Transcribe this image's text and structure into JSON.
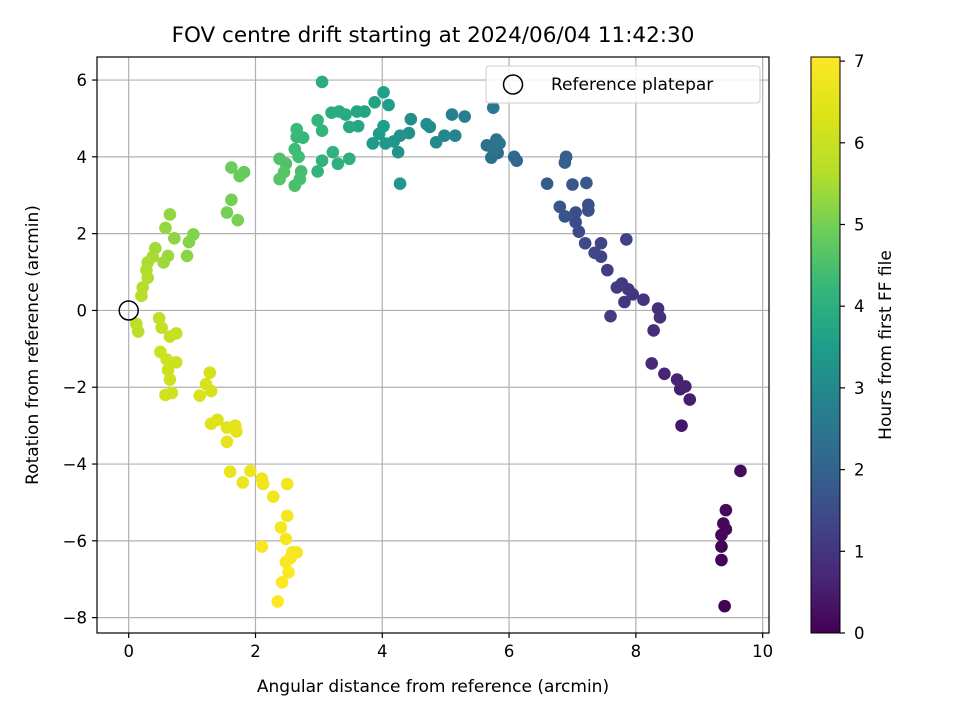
{
  "chart_data": {
    "type": "scatter",
    "title": "FOV centre drift starting at 2024/06/04 11:42:30",
    "xlabel": "Angular distance from reference (arcmin)",
    "ylabel": "Rotation from reference (arcmin)",
    "xlim": [
      -0.5,
      10.1
    ],
    "ylim": [
      -8.4,
      6.6
    ],
    "xticks": [
      0,
      2,
      4,
      6,
      8,
      10
    ],
    "yticks": [
      -8,
      -6,
      -4,
      -2,
      0,
      2,
      4,
      6
    ],
    "grid": true,
    "legend": {
      "position": "upper-right",
      "entries": [
        "Reference platepar"
      ]
    },
    "reference_point": {
      "x": 0,
      "y": 0,
      "label": "Reference platepar"
    },
    "colorbar": {
      "label": "Hours from first FF file",
      "range": [
        0,
        7.05
      ],
      "ticks": [
        0,
        1,
        2,
        3,
        4,
        5,
        6,
        7
      ],
      "colormap": "viridis"
    },
    "points": [
      {
        "x": 9.4,
        "y": -7.7,
        "h": 0.02
      },
      {
        "x": 9.35,
        "y": -6.5,
        "h": 0.05
      },
      {
        "x": 9.35,
        "y": -6.15,
        "h": 0.08
      },
      {
        "x": 9.35,
        "y": -5.85,
        "h": 0.1
      },
      {
        "x": 9.42,
        "y": -5.7,
        "h": 0.12
      },
      {
        "x": 9.38,
        "y": -5.55,
        "h": 0.14
      },
      {
        "x": 9.42,
        "y": -5.2,
        "h": 0.16
      },
      {
        "x": 9.65,
        "y": -4.18,
        "h": 0.2
      },
      {
        "x": 8.72,
        "y": -3.0,
        "h": 0.4
      },
      {
        "x": 8.85,
        "y": -2.32,
        "h": 0.5
      },
      {
        "x": 8.7,
        "y": -2.05,
        "h": 0.55
      },
      {
        "x": 8.78,
        "y": -1.98,
        "h": 0.58
      },
      {
        "x": 8.65,
        "y": -1.8,
        "h": 0.62
      },
      {
        "x": 8.45,
        "y": -1.65,
        "h": 0.66
      },
      {
        "x": 8.25,
        "y": -1.38,
        "h": 0.72
      },
      {
        "x": 8.28,
        "y": -0.52,
        "h": 0.8
      },
      {
        "x": 8.38,
        "y": -0.18,
        "h": 0.85
      },
      {
        "x": 8.35,
        "y": 0.05,
        "h": 0.88
      },
      {
        "x": 8.12,
        "y": 0.28,
        "h": 0.94
      },
      {
        "x": 7.95,
        "y": 0.42,
        "h": 0.98
      },
      {
        "x": 7.82,
        "y": 0.22,
        "h": 1.02
      },
      {
        "x": 7.88,
        "y": 0.55,
        "h": 1.05
      },
      {
        "x": 7.78,
        "y": 0.7,
        "h": 1.08
      },
      {
        "x": 7.7,
        "y": 0.6,
        "h": 1.1
      },
      {
        "x": 7.6,
        "y": -0.15,
        "h": 1.15
      },
      {
        "x": 7.55,
        "y": 1.05,
        "h": 1.2
      },
      {
        "x": 7.85,
        "y": 1.85,
        "h": 1.25
      },
      {
        "x": 7.45,
        "y": 1.4,
        "h": 1.3
      },
      {
        "x": 7.45,
        "y": 1.75,
        "h": 1.33
      },
      {
        "x": 7.35,
        "y": 1.5,
        "h": 1.36
      },
      {
        "x": 7.2,
        "y": 1.75,
        "h": 1.4
      },
      {
        "x": 7.1,
        "y": 2.05,
        "h": 1.44
      },
      {
        "x": 7.05,
        "y": 2.3,
        "h": 1.48
      },
      {
        "x": 7.05,
        "y": 2.55,
        "h": 1.52
      },
      {
        "x": 7.25,
        "y": 2.6,
        "h": 1.56
      },
      {
        "x": 7.25,
        "y": 2.75,
        "h": 1.6
      },
      {
        "x": 6.88,
        "y": 2.45,
        "h": 1.66
      },
      {
        "x": 6.8,
        "y": 2.7,
        "h": 1.7
      },
      {
        "x": 7.0,
        "y": 3.28,
        "h": 1.75
      },
      {
        "x": 7.22,
        "y": 3.32,
        "h": 1.78
      },
      {
        "x": 6.6,
        "y": 3.3,
        "h": 1.84
      },
      {
        "x": 6.88,
        "y": 3.85,
        "h": 1.9
      },
      {
        "x": 6.9,
        "y": 4.0,
        "h": 1.94
      },
      {
        "x": 6.12,
        "y": 3.9,
        "h": 2.1
      },
      {
        "x": 6.08,
        "y": 4.0,
        "h": 2.14
      },
      {
        "x": 5.82,
        "y": 4.1,
        "h": 2.25
      },
      {
        "x": 5.72,
        "y": 3.98,
        "h": 2.3
      },
      {
        "x": 5.65,
        "y": 4.3,
        "h": 2.34
      },
      {
        "x": 5.8,
        "y": 4.45,
        "h": 2.38
      },
      {
        "x": 5.75,
        "y": 4.2,
        "h": 2.42
      },
      {
        "x": 5.85,
        "y": 4.35,
        "h": 2.46
      },
      {
        "x": 5.75,
        "y": 5.28,
        "h": 2.52
      },
      {
        "x": 5.3,
        "y": 5.05,
        "h": 2.7
      },
      {
        "x": 5.1,
        "y": 5.1,
        "h": 2.8
      },
      {
        "x": 5.15,
        "y": 4.55,
        "h": 2.86
      },
      {
        "x": 4.98,
        "y": 4.55,
        "h": 2.92
      },
      {
        "x": 4.85,
        "y": 4.38,
        "h": 2.98
      },
      {
        "x": 4.75,
        "y": 4.78,
        "h": 3.04
      },
      {
        "x": 4.7,
        "y": 4.85,
        "h": 3.08
      },
      {
        "x": 4.45,
        "y": 4.98,
        "h": 3.14
      },
      {
        "x": 4.42,
        "y": 4.62,
        "h": 3.18
      },
      {
        "x": 4.28,
        "y": 4.55,
        "h": 3.22
      },
      {
        "x": 4.25,
        "y": 4.12,
        "h": 3.26
      },
      {
        "x": 4.28,
        "y": 3.3,
        "h": 3.32
      },
      {
        "x": 4.18,
        "y": 4.4,
        "h": 3.36
      },
      {
        "x": 4.05,
        "y": 4.35,
        "h": 3.4
      },
      {
        "x": 3.95,
        "y": 4.6,
        "h": 3.44
      },
      {
        "x": 3.85,
        "y": 4.35,
        "h": 3.48
      },
      {
        "x": 4.02,
        "y": 4.8,
        "h": 3.52
      },
      {
        "x": 4.1,
        "y": 5.35,
        "h": 3.56
      },
      {
        "x": 4.02,
        "y": 5.68,
        "h": 3.6
      },
      {
        "x": 3.88,
        "y": 5.42,
        "h": 3.64
      },
      {
        "x": 3.72,
        "y": 5.18,
        "h": 3.68
      },
      {
        "x": 3.6,
        "y": 5.18,
        "h": 3.72
      },
      {
        "x": 3.62,
        "y": 4.8,
        "h": 3.76
      },
      {
        "x": 3.48,
        "y": 4.78,
        "h": 3.8
      },
      {
        "x": 3.42,
        "y": 5.1,
        "h": 3.84
      },
      {
        "x": 3.32,
        "y": 5.18,
        "h": 3.88
      },
      {
        "x": 3.2,
        "y": 5.15,
        "h": 3.92
      },
      {
        "x": 3.05,
        "y": 5.95,
        "h": 3.96
      },
      {
        "x": 3.3,
        "y": 3.82,
        "h": 4.0
      },
      {
        "x": 3.48,
        "y": 3.95,
        "h": 4.03
      },
      {
        "x": 3.22,
        "y": 4.12,
        "h": 4.06
      },
      {
        "x": 3.05,
        "y": 3.9,
        "h": 4.09
      },
      {
        "x": 2.98,
        "y": 3.62,
        "h": 4.12
      },
      {
        "x": 3.05,
        "y": 4.68,
        "h": 4.15
      },
      {
        "x": 2.98,
        "y": 4.95,
        "h": 4.18
      },
      {
        "x": 2.75,
        "y": 4.5,
        "h": 4.22
      },
      {
        "x": 2.65,
        "y": 4.52,
        "h": 4.26
      },
      {
        "x": 2.65,
        "y": 4.72,
        "h": 4.3
      },
      {
        "x": 2.62,
        "y": 4.2,
        "h": 4.34
      },
      {
        "x": 2.68,
        "y": 4.0,
        "h": 4.38
      },
      {
        "x": 2.72,
        "y": 3.62,
        "h": 4.42
      },
      {
        "x": 2.7,
        "y": 3.42,
        "h": 4.46
      },
      {
        "x": 2.62,
        "y": 3.25,
        "h": 4.5
      },
      {
        "x": 2.48,
        "y": 3.82,
        "h": 4.54
      },
      {
        "x": 2.38,
        "y": 3.95,
        "h": 4.58
      },
      {
        "x": 2.45,
        "y": 3.6,
        "h": 4.62
      },
      {
        "x": 2.38,
        "y": 3.42,
        "h": 4.66
      },
      {
        "x": 1.82,
        "y": 3.6,
        "h": 4.82
      },
      {
        "x": 1.75,
        "y": 3.5,
        "h": 4.86
      },
      {
        "x": 1.62,
        "y": 3.72,
        "h": 4.9
      },
      {
        "x": 1.62,
        "y": 2.88,
        "h": 4.96
      },
      {
        "x": 1.55,
        "y": 2.55,
        "h": 5.0
      },
      {
        "x": 1.72,
        "y": 2.35,
        "h": 5.04
      },
      {
        "x": 1.02,
        "y": 1.98,
        "h": 5.12
      },
      {
        "x": 0.95,
        "y": 1.78,
        "h": 5.16
      },
      {
        "x": 0.92,
        "y": 1.42,
        "h": 5.2
      },
      {
        "x": 0.72,
        "y": 1.88,
        "h": 5.26
      },
      {
        "x": 0.65,
        "y": 2.5,
        "h": 5.3
      },
      {
        "x": 0.58,
        "y": 2.15,
        "h": 5.34
      },
      {
        "x": 0.62,
        "y": 1.42,
        "h": 5.38
      },
      {
        "x": 0.55,
        "y": 1.25,
        "h": 5.42
      },
      {
        "x": 0.42,
        "y": 1.62,
        "h": 5.46
      },
      {
        "x": 0.38,
        "y": 1.4,
        "h": 5.5
      },
      {
        "x": 0.3,
        "y": 1.25,
        "h": 5.54
      },
      {
        "x": 0.28,
        "y": 1.05,
        "h": 5.58
      },
      {
        "x": 0.3,
        "y": 0.85,
        "h": 5.62
      },
      {
        "x": 0.22,
        "y": 0.6,
        "h": 5.66
      },
      {
        "x": 0.2,
        "y": 0.38,
        "h": 5.7
      },
      {
        "x": 0.12,
        "y": -0.35,
        "h": 5.76
      },
      {
        "x": 0.15,
        "y": -0.55,
        "h": 5.8
      },
      {
        "x": 0.48,
        "y": -0.2,
        "h": 5.84
      },
      {
        "x": 0.52,
        "y": -0.45,
        "h": 5.88
      },
      {
        "x": 0.65,
        "y": -0.68,
        "h": 5.92
      },
      {
        "x": 0.75,
        "y": -0.6,
        "h": 5.96
      },
      {
        "x": 0.5,
        "y": -1.08,
        "h": 6.0
      },
      {
        "x": 0.6,
        "y": -1.28,
        "h": 6.02
      },
      {
        "x": 0.75,
        "y": -1.35,
        "h": 6.04
      },
      {
        "x": 0.62,
        "y": -1.55,
        "h": 6.06
      },
      {
        "x": 0.65,
        "y": -1.8,
        "h": 6.08
      },
      {
        "x": 0.58,
        "y": -2.2,
        "h": 6.1
      },
      {
        "x": 0.68,
        "y": -2.15,
        "h": 6.12
      },
      {
        "x": 1.28,
        "y": -1.62,
        "h": 6.18
      },
      {
        "x": 1.22,
        "y": -1.92,
        "h": 6.22
      },
      {
        "x": 1.3,
        "y": -2.1,
        "h": 6.26
      },
      {
        "x": 1.12,
        "y": -2.22,
        "h": 6.3
      },
      {
        "x": 1.4,
        "y": -2.85,
        "h": 6.36
      },
      {
        "x": 1.3,
        "y": -2.95,
        "h": 6.4
      },
      {
        "x": 1.55,
        "y": -3.05,
        "h": 6.44
      },
      {
        "x": 1.68,
        "y": -3.0,
        "h": 6.48
      },
      {
        "x": 1.7,
        "y": -3.15,
        "h": 6.52
      },
      {
        "x": 1.55,
        "y": -3.42,
        "h": 6.56
      },
      {
        "x": 1.6,
        "y": -4.2,
        "h": 6.62
      },
      {
        "x": 1.8,
        "y": -4.48,
        "h": 6.66
      },
      {
        "x": 1.92,
        "y": -4.18,
        "h": 6.7
      },
      {
        "x": 2.1,
        "y": -4.38,
        "h": 6.74
      },
      {
        "x": 2.12,
        "y": -4.52,
        "h": 6.78
      },
      {
        "x": 2.28,
        "y": -4.85,
        "h": 6.82
      },
      {
        "x": 2.5,
        "y": -4.52,
        "h": 6.84
      },
      {
        "x": 2.5,
        "y": -5.35,
        "h": 6.86
      },
      {
        "x": 2.4,
        "y": -5.65,
        "h": 6.88
      },
      {
        "x": 2.48,
        "y": -5.95,
        "h": 6.9
      },
      {
        "x": 2.1,
        "y": -6.15,
        "h": 6.92
      },
      {
        "x": 2.58,
        "y": -6.3,
        "h": 6.94
      },
      {
        "x": 2.65,
        "y": -6.3,
        "h": 6.96
      },
      {
        "x": 2.55,
        "y": -6.45,
        "h": 6.97
      },
      {
        "x": 2.48,
        "y": -6.55,
        "h": 6.98
      },
      {
        "x": 2.52,
        "y": -6.82,
        "h": 7.0
      },
      {
        "x": 2.42,
        "y": -7.08,
        "h": 7.02
      },
      {
        "x": 2.35,
        "y": -7.58,
        "h": 7.04
      }
    ]
  }
}
